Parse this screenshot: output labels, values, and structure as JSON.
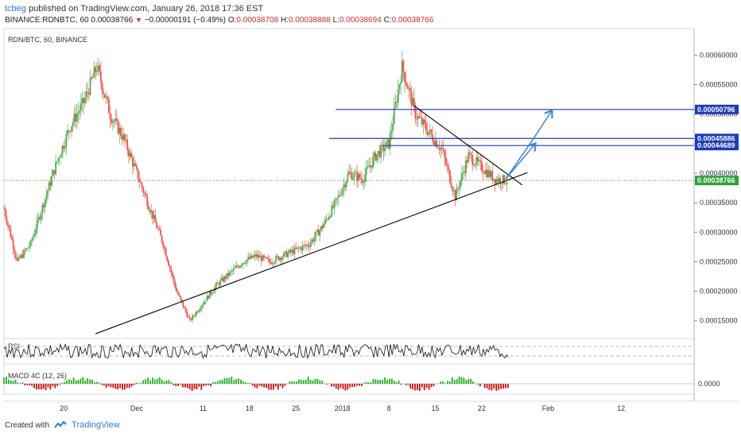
{
  "header": {
    "user": "tcbeg",
    "published_text": "published on TradingView.com, January 26, 2018 17:36 EST",
    "symbol": "BINANCE:RDNBTC, 60",
    "last": "0.00038766",
    "change": "−0.00000191 (−0.49%)",
    "ohlc_o_label": "O:",
    "ohlc_o": "0.00038708",
    "ohlc_h_label": "H:",
    "ohlc_h": "0.00038888",
    "ohlc_l_label": "L:",
    "ohlc_l": "0.00038694",
    "ohlc_c_label": "C:",
    "ohlc_c": "0.00038766"
  },
  "footer": {
    "created_with": "Created with",
    "brand": "TradingView"
  },
  "colors": {
    "up": "#4caf50",
    "down": "#ef5350",
    "hline": "#1e3ab8",
    "price_line": "#2e9e3e",
    "arrow": "#3d85d8",
    "trend": "#000000",
    "macd_up": "#22b022",
    "macd_down": "#cc1010"
  },
  "chart_data": {
    "type": "candlestick",
    "title": "RDN/BTC, 60, BINANCE",
    "y_ticks": [
      "0.00060000",
      "0.00055000",
      "0.00050000",
      "0.00045000",
      "0.00040000",
      "0.00035000",
      "0.00030000",
      "0.00025000",
      "0.00020000",
      "0.00015000"
    ],
    "ylim": [
      0.00012,
      0.000645
    ],
    "x_ticks": [
      "20",
      "Dec",
      "11",
      "18",
      "25",
      "2018",
      "8",
      "15",
      "22",
      "Feb",
      "12"
    ],
    "x_tick_days": [
      -11,
      0,
      10,
      17,
      24,
      31,
      38,
      45,
      52,
      62,
      73
    ],
    "xlim_days": [
      -20,
      84
    ],
    "price_series_days": [
      -20,
      -18,
      -16,
      -14,
      -12,
      -10,
      -8,
      -6,
      -4,
      -2,
      0,
      2,
      4,
      6,
      8,
      10,
      12,
      14,
      16,
      18,
      20,
      22,
      24,
      26,
      28,
      30,
      32,
      34,
      36,
      38,
      40,
      42,
      44,
      46,
      48,
      50,
      52,
      54,
      56
    ],
    "price_series_values": [
      0.00034,
      0.00025,
      0.00028,
      0.00035,
      0.00042,
      0.00048,
      0.00052,
      0.00058,
      0.0005,
      0.00046,
      0.0004,
      0.00034,
      0.00028,
      0.0002,
      0.00015,
      0.00018,
      0.00021,
      0.00023,
      0.00025,
      0.00026,
      0.00025,
      0.00026,
      0.00027,
      0.00028,
      0.00031,
      0.00035,
      0.0004,
      0.00039,
      0.00043,
      0.00045,
      0.00058,
      0.0005,
      0.00047,
      0.00044,
      0.00036,
      0.00043,
      0.00041,
      0.00039,
      0.00038766
    ],
    "last_price": 0.00038766,
    "horizontal_levels": [
      {
        "value": 0.00050796,
        "label": "0.00050796",
        "from_day": 30
      },
      {
        "value": 0.00045886,
        "label": "0.00045886",
        "from_day": 29
      },
      {
        "value": 0.00044689,
        "label": "0.00044689",
        "from_day": 37
      }
    ],
    "trendlines": [
      {
        "from": [
          -6.2,
          0.000128
        ],
        "to": [
          58.9,
          0.000401
        ]
      },
      {
        "from": [
          41.7,
          0.000515
        ],
        "to": [
          58.1,
          0.00038
        ]
      }
    ],
    "projection_arrows": [
      {
        "points": [
          [
            55.6,
            0.00039
          ],
          [
            60.0,
            0.000449
          ]
        ]
      },
      {
        "points": [
          [
            55.6,
            0.00039
          ],
          [
            59.7,
            0.000457
          ],
          [
            62.5,
            0.000505
          ]
        ]
      }
    ],
    "indicators": [
      {
        "name": "RSI"
      },
      {
        "name": "MACD 4C (12, 26)",
        "y_tick": "0.0000"
      }
    ]
  }
}
